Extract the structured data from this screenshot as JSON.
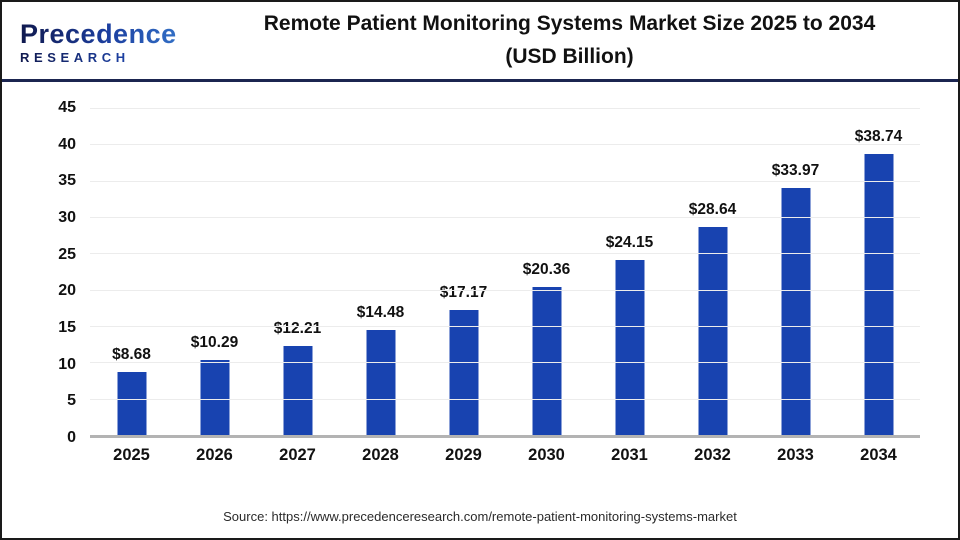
{
  "header": {
    "logo": {
      "line1": "Precedence",
      "line2": "RESEARCH"
    },
    "title_line1": "Remote Patient Monitoring Systems Market Size 2025 to 2034",
    "title_line2": "(USD Billion)"
  },
  "chart_data": {
    "type": "bar",
    "title": "Remote Patient Monitoring Systems Market Size 2025 to 2034 (USD Billion)",
    "categories": [
      "2025",
      "2026",
      "2027",
      "2028",
      "2029",
      "2030",
      "2031",
      "2032",
      "2033",
      "2034"
    ],
    "values": [
      8.68,
      10.29,
      12.21,
      14.48,
      17.17,
      20.36,
      24.15,
      28.64,
      33.97,
      38.74
    ],
    "bar_labels": [
      "$8.68",
      "$10.29",
      "$12.21",
      "$14.48",
      "$17.17",
      "$20.36",
      "$24.15",
      "$28.64",
      "$33.97",
      "$38.74"
    ],
    "xlabel": "",
    "ylabel": "",
    "ylim": [
      0,
      45
    ],
    "yticks": [
      45,
      40,
      35,
      30,
      25,
      20,
      15,
      10,
      5,
      0
    ],
    "grid": true,
    "legend": false,
    "bar_color": "#1843b0",
    "gridline_color": "#ececec",
    "axis_line_color": "#b3b3b3"
  },
  "footer": {
    "source": "Source: https://www.precedenceresearch.com/remote-patient-monitoring-systems-market"
  }
}
